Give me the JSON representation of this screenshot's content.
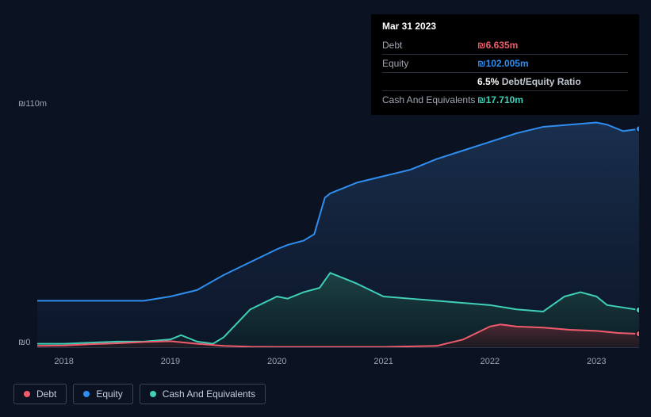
{
  "tooltip": {
    "date": "Mar 31 2023",
    "rows": [
      {
        "label": "Debt",
        "value": "₪6.635m",
        "color": "#f15b6c",
        "extra": ""
      },
      {
        "label": "Equity",
        "value": "₪102.005m",
        "color": "#2f8ef0",
        "extra": ""
      },
      {
        "label": "",
        "value": "6.5%",
        "color": "#ffffff",
        "extra": "Debt/Equity Ratio"
      },
      {
        "label": "Cash And Equivalents",
        "value": "₪17.710m",
        "color": "#3fd0b8",
        "extra": ""
      }
    ]
  },
  "chart": {
    "type": "area",
    "background": "#0b1221",
    "plot_fill": "linear-gradient(#0b1221,#0b1221)",
    "y": {
      "min": 0,
      "max": 110,
      "ticks": [
        0,
        110
      ],
      "labels": [
        "₪0",
        "₪110m"
      ]
    },
    "x": {
      "min": 2017.75,
      "max": 2023.4,
      "ticks": [
        2018,
        2019,
        2020,
        2021,
        2022,
        2023
      ],
      "labels": [
        "2018",
        "2019",
        "2020",
        "2021",
        "2022",
        "2023"
      ]
    },
    "series": [
      {
        "name": "Equity",
        "stroke": "#2f8ef0",
        "fill_top": "#1c3556",
        "fill_bottom": "#0e1a30",
        "line_width": 2,
        "points": [
          [
            2017.75,
            22
          ],
          [
            2018.0,
            22
          ],
          [
            2018.25,
            22
          ],
          [
            2018.5,
            22
          ],
          [
            2018.75,
            22
          ],
          [
            2019.0,
            24
          ],
          [
            2019.25,
            27
          ],
          [
            2019.5,
            34
          ],
          [
            2019.75,
            40
          ],
          [
            2020.0,
            46
          ],
          [
            2020.1,
            48
          ],
          [
            2020.25,
            50
          ],
          [
            2020.35,
            53
          ],
          [
            2020.45,
            70
          ],
          [
            2020.5,
            72
          ],
          [
            2020.75,
            77
          ],
          [
            2021.0,
            80
          ],
          [
            2021.25,
            83
          ],
          [
            2021.5,
            88
          ],
          [
            2021.75,
            92
          ],
          [
            2022.0,
            96
          ],
          [
            2022.25,
            100
          ],
          [
            2022.5,
            103
          ],
          [
            2022.75,
            104
          ],
          [
            2023.0,
            105
          ],
          [
            2023.1,
            104
          ],
          [
            2023.25,
            101
          ],
          [
            2023.4,
            102
          ]
        ],
        "end_marker_color": "#2f8ef0"
      },
      {
        "name": "Cash And Equivalents",
        "stroke": "#3fd0b8",
        "fill_top": "#1f4a47",
        "fill_bottom": "#0d2426",
        "line_width": 2,
        "points": [
          [
            2017.75,
            2
          ],
          [
            2018.0,
            2
          ],
          [
            2018.25,
            2.5
          ],
          [
            2018.5,
            3
          ],
          [
            2018.75,
            3
          ],
          [
            2019.0,
            4
          ],
          [
            2019.1,
            6
          ],
          [
            2019.25,
            3
          ],
          [
            2019.4,
            2
          ],
          [
            2019.5,
            5
          ],
          [
            2019.75,
            18
          ],
          [
            2020.0,
            24
          ],
          [
            2020.1,
            23
          ],
          [
            2020.25,
            26
          ],
          [
            2020.4,
            28
          ],
          [
            2020.5,
            35
          ],
          [
            2020.6,
            33
          ],
          [
            2020.75,
            30
          ],
          [
            2021.0,
            24
          ],
          [
            2021.25,
            23
          ],
          [
            2021.5,
            22
          ],
          [
            2021.75,
            21
          ],
          [
            2022.0,
            20
          ],
          [
            2022.25,
            18
          ],
          [
            2022.5,
            17
          ],
          [
            2022.7,
            24
          ],
          [
            2022.85,
            26
          ],
          [
            2023.0,
            24
          ],
          [
            2023.1,
            20
          ],
          [
            2023.4,
            17.7
          ]
        ],
        "end_marker_color": "#3fd0b8"
      },
      {
        "name": "Debt",
        "stroke": "#f15b6c",
        "fill_top": "#5a2a36",
        "fill_bottom": "#2a161c",
        "line_width": 2,
        "points": [
          [
            2017.75,
            1
          ],
          [
            2018.0,
            1.2
          ],
          [
            2018.25,
            1.8
          ],
          [
            2018.5,
            2.2
          ],
          [
            2018.75,
            2.8
          ],
          [
            2019.0,
            3.2
          ],
          [
            2019.25,
            2.0
          ],
          [
            2019.5,
            1.0
          ],
          [
            2019.75,
            0.6
          ],
          [
            2020.0,
            0.5
          ],
          [
            2020.5,
            0.5
          ],
          [
            2021.0,
            0.5
          ],
          [
            2021.5,
            1.0
          ],
          [
            2021.75,
            4.0
          ],
          [
            2022.0,
            10
          ],
          [
            2022.1,
            11
          ],
          [
            2022.25,
            10
          ],
          [
            2022.5,
            9.5
          ],
          [
            2022.75,
            8.5
          ],
          [
            2023.0,
            8
          ],
          [
            2023.2,
            7
          ],
          [
            2023.4,
            6.6
          ]
        ],
        "end_marker_color": "#f15b6c"
      }
    ]
  },
  "legend": {
    "items": [
      {
        "name": "Debt",
        "color": "#f15b6c"
      },
      {
        "name": "Equity",
        "color": "#2f8ef0"
      },
      {
        "name": "Cash And Equivalents",
        "color": "#3fd0b8"
      }
    ]
  }
}
